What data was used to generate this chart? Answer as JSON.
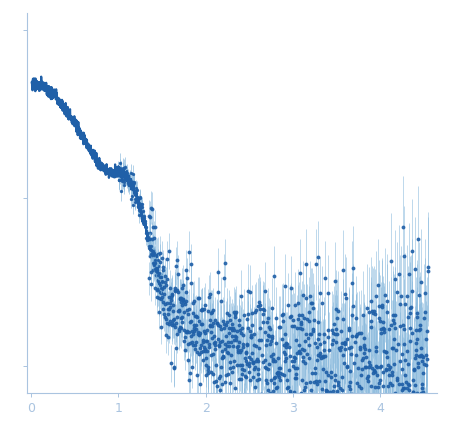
{
  "title": "",
  "xlabel": "",
  "ylabel": "",
  "xlim": [
    -0.05,
    4.65
  ],
  "ylim": [
    -0.08,
    1.05
  ],
  "x_ticks": [
    0,
    1,
    2,
    3,
    4
  ],
  "background_color": "#ffffff",
  "axes_color": "#aac4e0",
  "tick_color": "#aac4e0",
  "data_color": "#2060a8",
  "error_color": "#88b8dc",
  "dot_size": 1.8,
  "line_width": 1.6,
  "seed": 77
}
